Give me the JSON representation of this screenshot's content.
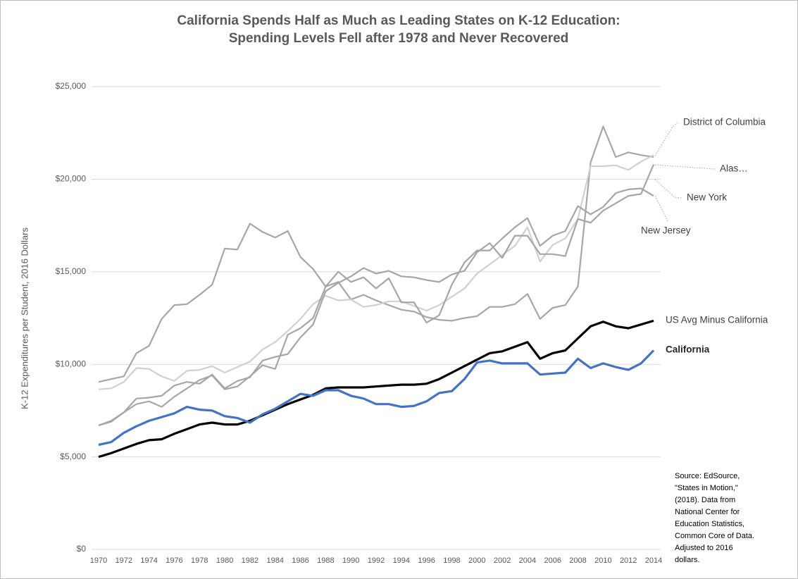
{
  "chart_data": {
    "type": "line",
    "title": [
      "California Spends Half as Much as Leading States on K-12 Education:",
      "Spending Levels Fell after 1978 and Never Recovered"
    ],
    "ylabel": "K-12 Expenditures per Student, 2016 Dollars",
    "source": [
      "Source: EdSource,",
      "\"States in Motion,\"",
      "(2018). Data from",
      "National Center for",
      "Education Statistics,",
      "Common Core of Data.",
      "Adjusted to 2016",
      "dollars."
    ],
    "x": [
      1970,
      1971,
      1972,
      1973,
      1974,
      1975,
      1976,
      1977,
      1978,
      1979,
      1980,
      1981,
      1982,
      1983,
      1984,
      1985,
      1986,
      1987,
      1988,
      1989,
      1990,
      1991,
      1992,
      1993,
      1994,
      1995,
      1996,
      1997,
      1998,
      1999,
      2000,
      2001,
      2002,
      2003,
      2004,
      2005,
      2006,
      2007,
      2008,
      2009,
      2010,
      2011,
      2012,
      2013,
      2014
    ],
    "xlim": [
      1970,
      2014
    ],
    "xticks": [
      1970,
      1972,
      1974,
      1976,
      1978,
      1980,
      1982,
      1984,
      1986,
      1988,
      1990,
      1992,
      1994,
      1996,
      1998,
      2000,
      2002,
      2004,
      2006,
      2008,
      2010,
      2012,
      2014
    ],
    "ylim": [
      0,
      25000
    ],
    "yticks": [
      {
        "value": 0,
        "label": "$0"
      },
      {
        "value": 5000,
        "label": "$5,000"
      },
      {
        "value": 10000,
        "label": "$10,000"
      },
      {
        "value": 15000,
        "label": "$15,000"
      },
      {
        "value": 20000,
        "label": "$20,000"
      },
      {
        "value": 25000,
        "label": "$25,000"
      }
    ],
    "grid": true,
    "series": [
      {
        "name": "District of Columbia",
        "color": "#a6a6a6",
        "values": [
          9050,
          9200,
          9350,
          10600,
          11000,
          12450,
          13200,
          13250,
          13750,
          14300,
          16250,
          16200,
          17600,
          17150,
          16850,
          17200,
          15800,
          15150,
          14200,
          14450,
          13500,
          13750,
          13450,
          13200,
          12950,
          12850,
          12550,
          12400,
          12350,
          12500,
          12600,
          13100,
          13100,
          13250,
          13800,
          12450,
          13050,
          13200,
          14200,
          20900,
          22850,
          21200,
          21450,
          21300,
          21200
        ]
      },
      {
        "name": "Alas…",
        "color": "#d0d0d0",
        "values": [
          8650,
          8700,
          9050,
          9800,
          9750,
          9350,
          9100,
          9650,
          9700,
          9900,
          9550,
          9850,
          10150,
          10800,
          11200,
          11800,
          12450,
          13250,
          13700,
          13450,
          13500,
          13100,
          13200,
          13400,
          13400,
          13150,
          12900,
          13200,
          13650,
          14100,
          14900,
          15400,
          15900,
          16400,
          17400,
          15550,
          16450,
          16800,
          17850,
          20700,
          20700,
          20750,
          20500,
          20950,
          21300
        ]
      },
      {
        "name": "New York",
        "color": "#a6a6a6",
        "values": [
          6700,
          6950,
          7400,
          7850,
          8000,
          7700,
          8250,
          8700,
          9150,
          9400,
          8650,
          8800,
          9350,
          9950,
          9750,
          11600,
          11950,
          12500,
          14200,
          15000,
          14450,
          14700,
          14100,
          14650,
          13350,
          13350,
          12250,
          12650,
          14300,
          15500,
          16150,
          16150,
          16800,
          17400,
          17900,
          16400,
          16950,
          17200,
          18550,
          18100,
          18500,
          19250,
          19450,
          19500,
          19100
        ]
      },
      {
        "name": "New Jersey",
        "color": "#a6a6a6",
        "values": [
          6700,
          6900,
          7400,
          8150,
          8200,
          8300,
          8850,
          9050,
          8950,
          9450,
          8700,
          9100,
          9300,
          10200,
          10400,
          10550,
          11450,
          12150,
          13950,
          14400,
          14750,
          15200,
          14900,
          15050,
          14750,
          14700,
          14550,
          14450,
          14850,
          15050,
          16050,
          16550,
          15750,
          16950,
          16950,
          15950,
          15950,
          15850,
          17850,
          17650,
          18300,
          18700,
          19100,
          19200,
          20800
        ]
      },
      {
        "name": "US Avg Minus California",
        "color": "#000000",
        "values": [
          5000,
          5200,
          5450,
          5700,
          5900,
          5950,
          6250,
          6500,
          6750,
          6850,
          6750,
          6750,
          6950,
          7250,
          7550,
          7850,
          8100,
          8350,
          8700,
          8750,
          8750,
          8750,
          8800,
          8850,
          8900,
          8900,
          8950,
          9200,
          9550,
          9900,
          10250,
          10600,
          10700,
          10950,
          11200,
          10300,
          10600,
          10750,
          11400,
          12050,
          12300,
          12050,
          11950,
          12150,
          12350
        ]
      },
      {
        "name": "California",
        "color": "#4472c4",
        "values": [
          5650,
          5800,
          6300,
          6650,
          6950,
          7150,
          7350,
          7700,
          7550,
          7500,
          7200,
          7100,
          6850,
          7300,
          7600,
          8000,
          8400,
          8300,
          8600,
          8600,
          8300,
          8150,
          7850,
          7850,
          7700,
          7750,
          8000,
          8450,
          8550,
          9200,
          10100,
          10200,
          10050,
          10050,
          10050,
          9450,
          9500,
          9550,
          10300,
          9800,
          10050,
          9850,
          9700,
          10050,
          10750
        ]
      }
    ]
  }
}
